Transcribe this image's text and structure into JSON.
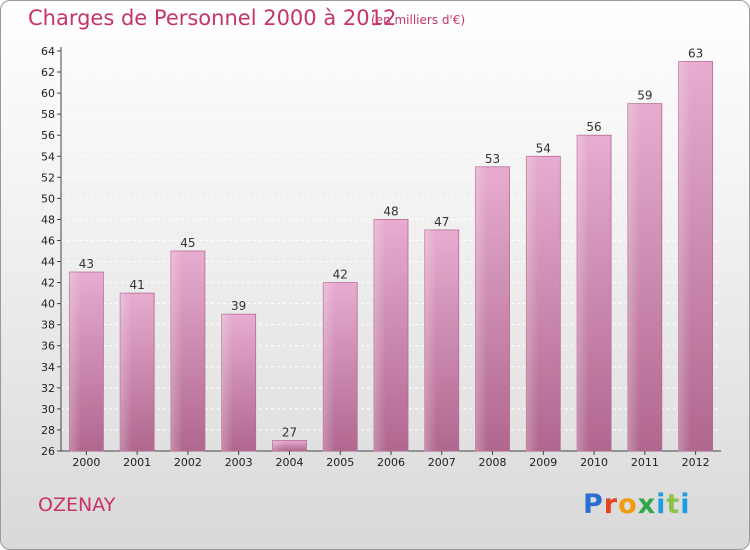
{
  "header": {
    "title": "Charges de Personnel 2000 à 2012",
    "subtitle": "(en milliers d'€)"
  },
  "footer": {
    "place": "OZENAY",
    "logo": "Proxiti"
  },
  "colors": {
    "accent": "#c8336b",
    "bar_light": "#e7acd0",
    "bar_dark": "#b0678f",
    "logo_p": "#2a6fd1",
    "logo_r": "#e8421c",
    "logo_o": "#f09a12",
    "logo_x": "#2ea84a",
    "logo_i": "#1f9be0",
    "logo_t": "#8bc34a"
  },
  "chart_data": {
    "type": "bar",
    "categories": [
      "2000",
      "2001",
      "2002",
      "2003",
      "2004",
      "2005",
      "2006",
      "2007",
      "2008",
      "2009",
      "2010",
      "2011",
      "2012"
    ],
    "values": [
      43,
      41,
      45,
      39,
      27,
      42,
      48,
      47,
      53,
      54,
      56,
      59,
      63
    ],
    "ylim": [
      26,
      64
    ],
    "ytick_step": 2,
    "grid": true,
    "legend": "none"
  }
}
